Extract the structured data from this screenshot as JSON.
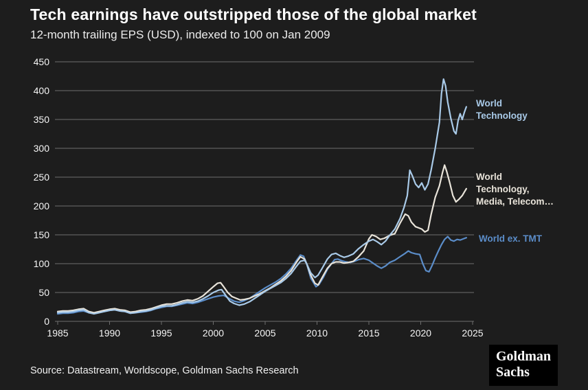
{
  "page": {
    "title": "Tech earnings have outstripped those of the global market",
    "subtitle": "12-month trailing EPS (USD), indexed to 100 on Jan 2009"
  },
  "footer": {
    "source": "Source: Datastream, Worldscope, Goldman Sachs Research",
    "logo_line1": "Goldman",
    "logo_line2": "Sachs"
  },
  "colors": {
    "background": "#1d1d1d",
    "grid": "#6f6f6f",
    "tick_text": "#f5f5f5",
    "title_text": "#ffffff"
  },
  "chart_data": {
    "type": "line",
    "title": "Tech earnings have outstripped those of the global market",
    "subtitle": "12-month trailing EPS (USD), indexed to 100 on Jan 2009",
    "xlim": [
      1985,
      2025
    ],
    "ylim": [
      0,
      450
    ],
    "xticks": [
      1985,
      1990,
      1995,
      2000,
      2005,
      2010,
      2015,
      2020,
      2025
    ],
    "yticks": [
      0,
      50,
      100,
      150,
      200,
      250,
      300,
      350,
      400,
      450
    ],
    "grid": "horizontal",
    "legend_position": "end-of-line labels, right side",
    "series": [
      {
        "name": "World ex. TMT",
        "label": "World ex. TMT",
        "color": "#5b8dc9",
        "points": [
          [
            1985,
            13
          ],
          [
            1985.5,
            14
          ],
          [
            1986,
            14
          ],
          [
            1986.5,
            15
          ],
          [
            1987,
            17
          ],
          [
            1987.5,
            18
          ],
          [
            1988,
            15
          ],
          [
            1988.5,
            14
          ],
          [
            1989,
            16
          ],
          [
            1989.5,
            17
          ],
          [
            1990,
            19
          ],
          [
            1990.5,
            20
          ],
          [
            1991,
            18
          ],
          [
            1991.5,
            17
          ],
          [
            1992,
            14
          ],
          [
            1992.5,
            15
          ],
          [
            1993,
            16
          ],
          [
            1993.5,
            17
          ],
          [
            1994,
            19
          ],
          [
            1994.5,
            22
          ],
          [
            1995,
            24
          ],
          [
            1995.5,
            26
          ],
          [
            1996,
            26
          ],
          [
            1996.5,
            28
          ],
          [
            1997,
            30
          ],
          [
            1997.5,
            32
          ],
          [
            1998,
            31
          ],
          [
            1998.5,
            33
          ],
          [
            1999,
            36
          ],
          [
            1999.5,
            39
          ],
          [
            2000,
            42
          ],
          [
            2000.5,
            44
          ],
          [
            2001,
            45
          ],
          [
            2001.5,
            40
          ],
          [
            2002,
            35
          ],
          [
            2002.5,
            33
          ],
          [
            2003,
            36
          ],
          [
            2003.5,
            40
          ],
          [
            2004,
            46
          ],
          [
            2004.5,
            52
          ],
          [
            2005,
            58
          ],
          [
            2005.5,
            63
          ],
          [
            2006,
            68
          ],
          [
            2006.5,
            74
          ],
          [
            2007,
            82
          ],
          [
            2007.5,
            92
          ],
          [
            2008,
            105
          ],
          [
            2008.4,
            115
          ],
          [
            2008.7,
            113
          ],
          [
            2009,
            100
          ],
          [
            2009.4,
            75
          ],
          [
            2009.9,
            60
          ],
          [
            2010.2,
            64
          ],
          [
            2010.6,
            76
          ],
          [
            2011,
            90
          ],
          [
            2011.4,
            100
          ],
          [
            2011.7,
            107
          ],
          [
            2012,
            108
          ],
          [
            2012.4,
            105
          ],
          [
            2012.8,
            103
          ],
          [
            2013.2,
            102
          ],
          [
            2013.6,
            104
          ],
          [
            2014,
            107
          ],
          [
            2014.5,
            109
          ],
          [
            2015,
            106
          ],
          [
            2015.4,
            101
          ],
          [
            2015.8,
            96
          ],
          [
            2016.2,
            92
          ],
          [
            2016.6,
            96
          ],
          [
            2017,
            102
          ],
          [
            2017.5,
            106
          ],
          [
            2018,
            112
          ],
          [
            2018.5,
            118
          ],
          [
            2018.8,
            122
          ],
          [
            2019.1,
            119
          ],
          [
            2019.5,
            117
          ],
          [
            2019.9,
            116
          ],
          [
            2020.2,
            100
          ],
          [
            2020.5,
            88
          ],
          [
            2020.8,
            86
          ],
          [
            2021.1,
            97
          ],
          [
            2021.4,
            110
          ],
          [
            2021.7,
            122
          ],
          [
            2022,
            133
          ],
          [
            2022.3,
            142
          ],
          [
            2022.6,
            147
          ],
          [
            2022.9,
            141
          ],
          [
            2023.2,
            139
          ],
          [
            2023.5,
            142
          ],
          [
            2023.8,
            141
          ],
          [
            2024.1,
            143
          ],
          [
            2024.4,
            145
          ]
        ]
      },
      {
        "name": "World Technology, Media, Telecom…",
        "label": "World\nTechnology,\nMedia, Telecom…",
        "color": "#e9e4da",
        "points": [
          [
            1985,
            17
          ],
          [
            1985.5,
            18
          ],
          [
            1986,
            18
          ],
          [
            1986.5,
            19
          ],
          [
            1987,
            21
          ],
          [
            1987.5,
            22
          ],
          [
            1988,
            17
          ],
          [
            1988.5,
            15
          ],
          [
            1989,
            17
          ],
          [
            1989.5,
            19
          ],
          [
            1990,
            21
          ],
          [
            1990.5,
            22
          ],
          [
            1991,
            20
          ],
          [
            1991.5,
            19
          ],
          [
            1992,
            16
          ],
          [
            1992.5,
            17
          ],
          [
            1993,
            19
          ],
          [
            1993.5,
            20
          ],
          [
            1994,
            22
          ],
          [
            1994.5,
            25
          ],
          [
            1995,
            28
          ],
          [
            1995.5,
            30
          ],
          [
            1996,
            30
          ],
          [
            1996.5,
            32
          ],
          [
            1997,
            35
          ],
          [
            1997.5,
            37
          ],
          [
            1998,
            36
          ],
          [
            1998.5,
            39
          ],
          [
            1999,
            44
          ],
          [
            1999.5,
            52
          ],
          [
            2000,
            60
          ],
          [
            2000.4,
            66
          ],
          [
            2000.7,
            67
          ],
          [
            2001,
            60
          ],
          [
            2001.4,
            50
          ],
          [
            2001.8,
            43
          ],
          [
            2002.2,
            40
          ],
          [
            2002.6,
            37
          ],
          [
            2003,
            38
          ],
          [
            2003.5,
            40
          ],
          [
            2004,
            44
          ],
          [
            2004.5,
            48
          ],
          [
            2005,
            53
          ],
          [
            2005.5,
            58
          ],
          [
            2006,
            64
          ],
          [
            2006.5,
            70
          ],
          [
            2007,
            78
          ],
          [
            2007.5,
            88
          ],
          [
            2008,
            102
          ],
          [
            2008.4,
            112
          ],
          [
            2008.8,
            108
          ],
          [
            2009,
            100
          ],
          [
            2009.4,
            80
          ],
          [
            2009.8,
            66
          ],
          [
            2010.1,
            63
          ],
          [
            2010.5,
            76
          ],
          [
            2011,
            92
          ],
          [
            2011.4,
            100
          ],
          [
            2011.8,
            103
          ],
          [
            2012.2,
            103
          ],
          [
            2012.6,
            101
          ],
          [
            2013,
            102
          ],
          [
            2013.5,
            104
          ],
          [
            2014,
            112
          ],
          [
            2014.5,
            122
          ],
          [
            2015,
            143
          ],
          [
            2015.3,
            150
          ],
          [
            2015.7,
            147
          ],
          [
            2016.1,
            142
          ],
          [
            2016.5,
            144
          ],
          [
            2017,
            149
          ],
          [
            2017.5,
            152
          ],
          [
            2018,
            170
          ],
          [
            2018.5,
            186
          ],
          [
            2018.8,
            183
          ],
          [
            2019.1,
            172
          ],
          [
            2019.5,
            164
          ],
          [
            2019.8,
            162
          ],
          [
            2020.1,
            160
          ],
          [
            2020.4,
            155
          ],
          [
            2020.7,
            158
          ],
          [
            2021,
            185
          ],
          [
            2021.4,
            215
          ],
          [
            2021.8,
            235
          ],
          [
            2022.1,
            258
          ],
          [
            2022.3,
            271
          ],
          [
            2022.5,
            260
          ],
          [
            2022.8,
            240
          ],
          [
            2023.1,
            218
          ],
          [
            2023.4,
            207
          ],
          [
            2023.7,
            212
          ],
          [
            2024,
            218
          ],
          [
            2024.2,
            224
          ],
          [
            2024.4,
            230
          ]
        ]
      },
      {
        "name": "World Technology",
        "label": "World\nTechnology",
        "color": "#a9cae8",
        "points": [
          [
            1985,
            15
          ],
          [
            1985.5,
            16
          ],
          [
            1986,
            16
          ],
          [
            1986.5,
            17
          ],
          [
            1987,
            19
          ],
          [
            1987.5,
            20
          ],
          [
            1988,
            15
          ],
          [
            1988.5,
            13
          ],
          [
            1989,
            15
          ],
          [
            1989.5,
            17
          ],
          [
            1990,
            19
          ],
          [
            1990.5,
            20
          ],
          [
            1991,
            18
          ],
          [
            1991.5,
            17
          ],
          [
            1992,
            14
          ],
          [
            1992.5,
            15
          ],
          [
            1993,
            17
          ],
          [
            1993.5,
            18
          ],
          [
            1994,
            20
          ],
          [
            1994.5,
            23
          ],
          [
            1995,
            26
          ],
          [
            1995.5,
            27
          ],
          [
            1996,
            27
          ],
          [
            1996.5,
            29
          ],
          [
            1997,
            32
          ],
          [
            1997.5,
            34
          ],
          [
            1998,
            33
          ],
          [
            1998.5,
            35
          ],
          [
            1999,
            39
          ],
          [
            1999.5,
            44
          ],
          [
            2000,
            50
          ],
          [
            2000.5,
            54
          ],
          [
            2000.8,
            55
          ],
          [
            2001.2,
            45
          ],
          [
            2001.6,
            35
          ],
          [
            2002,
            31
          ],
          [
            2002.5,
            28
          ],
          [
            2003,
            30
          ],
          [
            2003.5,
            34
          ],
          [
            2004,
            40
          ],
          [
            2004.5,
            46
          ],
          [
            2005,
            52
          ],
          [
            2005.5,
            57
          ],
          [
            2006,
            62
          ],
          [
            2006.5,
            67
          ],
          [
            2007,
            74
          ],
          [
            2007.5,
            83
          ],
          [
            2008,
            95
          ],
          [
            2008.4,
            104
          ],
          [
            2008.8,
            106
          ],
          [
            2009,
            100
          ],
          [
            2009.4,
            84
          ],
          [
            2009.8,
            76
          ],
          [
            2010.1,
            80
          ],
          [
            2010.5,
            92
          ],
          [
            2011,
            108
          ],
          [
            2011.4,
            116
          ],
          [
            2011.8,
            118
          ],
          [
            2012.2,
            114
          ],
          [
            2012.6,
            111
          ],
          [
            2013,
            113
          ],
          [
            2013.5,
            117
          ],
          [
            2014,
            126
          ],
          [
            2014.5,
            133
          ],
          [
            2015,
            139
          ],
          [
            2015.4,
            142
          ],
          [
            2015.8,
            138
          ],
          [
            2016.2,
            133
          ],
          [
            2016.6,
            139
          ],
          [
            2017,
            149
          ],
          [
            2017.5,
            160
          ],
          [
            2018,
            178
          ],
          [
            2018.4,
            198
          ],
          [
            2018.7,
            218
          ],
          [
            2018.95,
            262
          ],
          [
            2019.2,
            252
          ],
          [
            2019.5,
            238
          ],
          [
            2019.8,
            232
          ],
          [
            2020.1,
            240
          ],
          [
            2020.4,
            228
          ],
          [
            2020.7,
            238
          ],
          [
            2021,
            262
          ],
          [
            2021.4,
            300
          ],
          [
            2021.8,
            345
          ],
          [
            2022,
            395
          ],
          [
            2022.2,
            420
          ],
          [
            2022.4,
            408
          ],
          [
            2022.6,
            380
          ],
          [
            2022.9,
            352
          ],
          [
            2023.2,
            330
          ],
          [
            2023.4,
            325
          ],
          [
            2023.6,
            348
          ],
          [
            2023.8,
            360
          ],
          [
            2024,
            350
          ],
          [
            2024.2,
            362
          ],
          [
            2024.4,
            372
          ]
        ]
      }
    ]
  }
}
